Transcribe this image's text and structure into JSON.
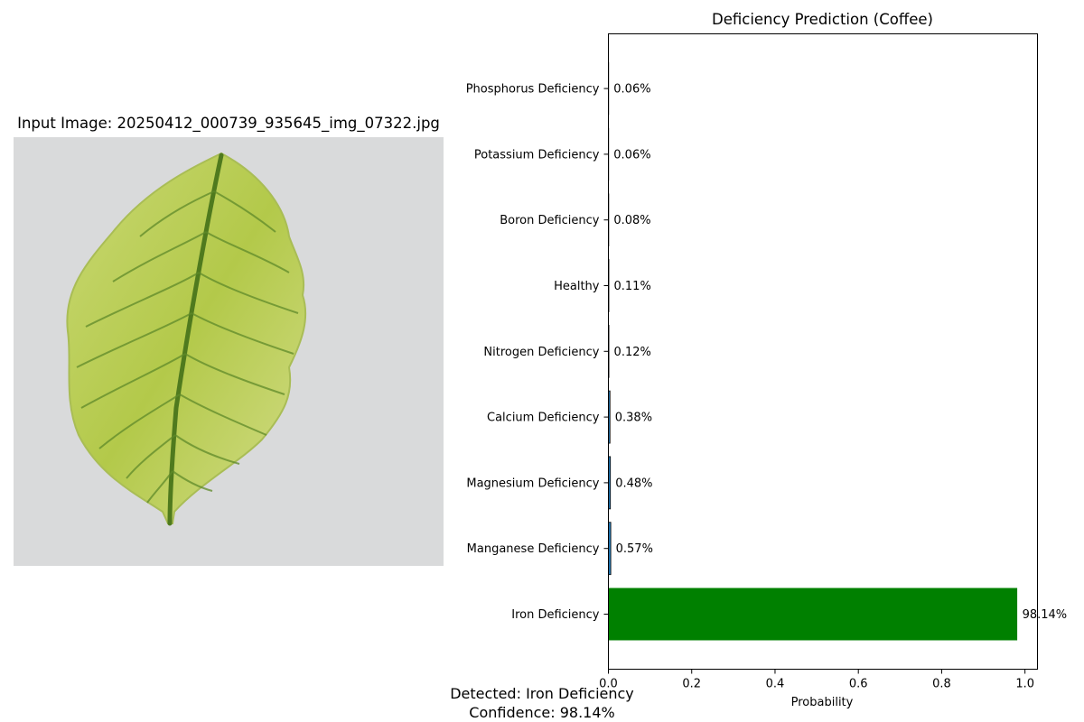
{
  "image_panel": {
    "title": "Input Image: 20250412_000739_935645_img_07322.jpg"
  },
  "footer": {
    "detected": "Detected: Iron Deficiency",
    "confidence": "Confidence: 98.14%"
  },
  "chart_data": {
    "type": "bar",
    "orientation": "horizontal",
    "title": "Deficiency Prediction (Coffee)",
    "xlabel": "Probability",
    "ylabel": "",
    "xlim": [
      0,
      1.03
    ],
    "xticks": [
      "0.0",
      "0.2",
      "0.4",
      "0.6",
      "0.8",
      "1.0"
    ],
    "categories": [
      "Iron Deficiency",
      "Manganese Deficiency",
      "Magnesium Deficiency",
      "Calcium Deficiency",
      "Nitrogen Deficiency",
      "Healthy",
      "Boron Deficiency",
      "Potassium Deficiency",
      "Phosphorus Deficiency"
    ],
    "values": [
      0.9814,
      0.0057,
      0.0048,
      0.0038,
      0.0012,
      0.0011,
      0.0008,
      0.0006,
      0.0006
    ],
    "labels": [
      "98.14%",
      "0.57%",
      "0.48%",
      "0.38%",
      "0.12%",
      "0.11%",
      "0.08%",
      "0.06%",
      "0.06%"
    ],
    "highlight_color": "#008000",
    "bar_color": "#1f77b4",
    "grid": false,
    "legend": "none"
  }
}
